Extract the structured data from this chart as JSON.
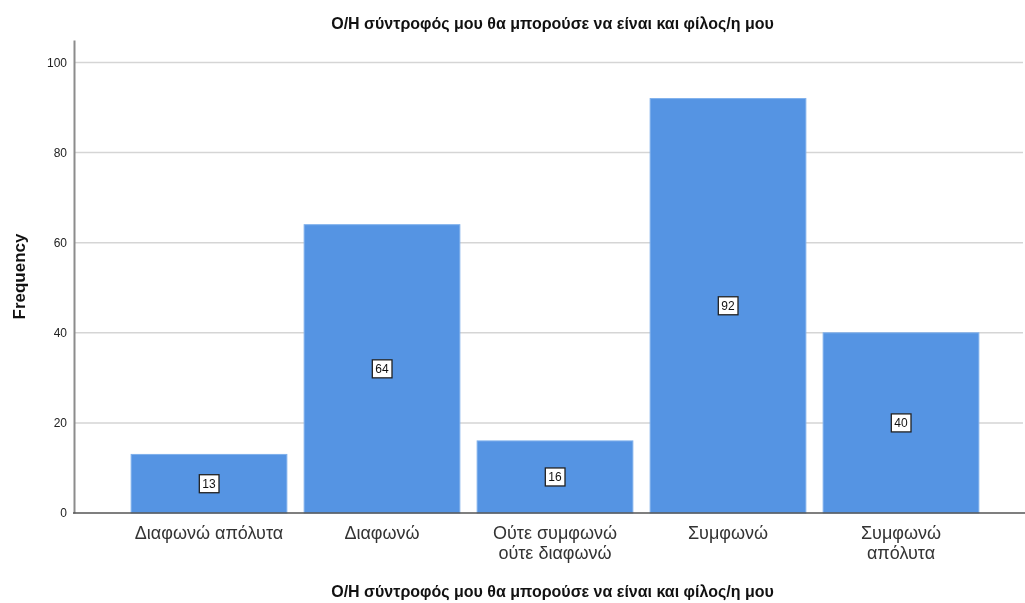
{
  "chart_data": {
    "type": "bar",
    "title": "Ο/Η σύντροφός μου θα μπορούσε να είναι και φίλος/η μου",
    "xlabel": "Ο/Η σύντροφός μου θα μπορούσε να είναι και φίλος/η μου",
    "ylabel": "Frequency",
    "categories": [
      "Διαφωνώ απόλυτα",
      "Διαφωνώ",
      "Ούτε συμφωνώ ούτε διαφωνώ",
      "Συμφωνώ",
      "Συμφωνώ απόλυτα"
    ],
    "values": [
      13,
      64,
      16,
      92,
      40
    ],
    "color": "#5594e3",
    "ylim": [
      0,
      105
    ],
    "yticks": [
      0,
      20,
      40,
      60,
      80,
      100
    ],
    "grid": "y",
    "data_labels": true
  }
}
